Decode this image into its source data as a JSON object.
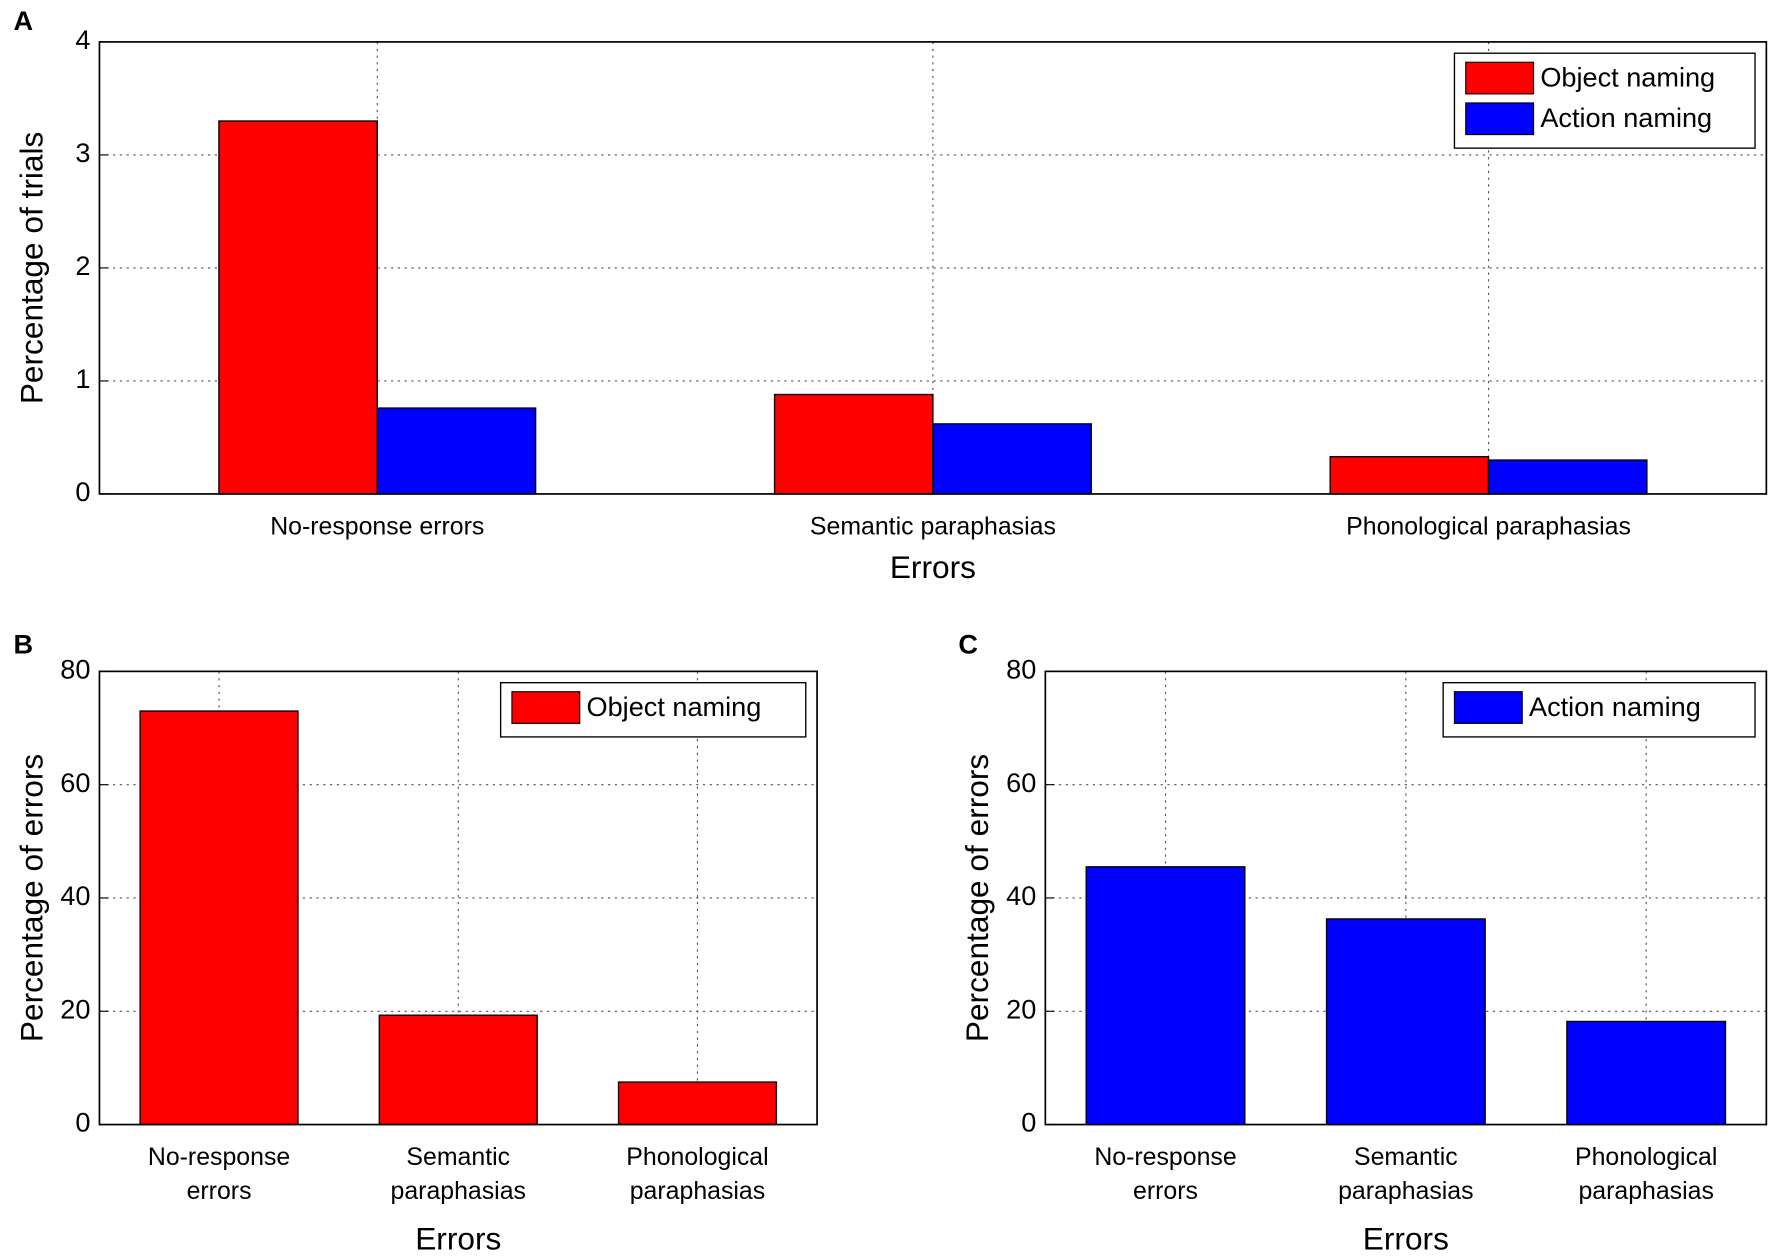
{
  "chart_data": [
    {
      "type": "bar",
      "panel_label": "A",
      "xlabel": "Errors",
      "ylabel": "Percentage of trials",
      "categories": [
        "No-response errors",
        "Semantic paraphasias",
        "Phonological paraphasias"
      ],
      "series": [
        {
          "name": "Object naming",
          "color": "#ff0000",
          "values": [
            3.3,
            0.88,
            0.33
          ]
        },
        {
          "name": "Action naming",
          "color": "#0000ff",
          "values": [
            0.76,
            0.62,
            0.3
          ]
        }
      ],
      "ylim": [
        0,
        4
      ],
      "yticks": [
        0,
        1,
        2,
        3,
        4
      ],
      "grid": true,
      "legend": "upper right"
    },
    {
      "type": "bar",
      "panel_label": "B",
      "xlabel": "Errors",
      "ylabel": "Percentage of errors",
      "categories": [
        "No-response errors",
        "Semantic paraphasias",
        "Phonological paraphasias"
      ],
      "series": [
        {
          "name": "Object naming",
          "color": "#ff0000",
          "values": [
            73,
            19.3,
            7.5
          ]
        }
      ],
      "ylim": [
        0,
        80
      ],
      "yticks": [
        0,
        20,
        40,
        60,
        80
      ],
      "grid": true,
      "legend": "upper right"
    },
    {
      "type": "bar",
      "panel_label": "C",
      "xlabel": "Errors",
      "ylabel": "Percentage of errors",
      "categories": [
        "No-response errors",
        "Semantic paraphasias",
        "Phonological paraphasias"
      ],
      "series": [
        {
          "name": "Action naming",
          "color": "#0000ff",
          "values": [
            45.5,
            36.3,
            18.2
          ]
        }
      ],
      "ylim": [
        0,
        80
      ],
      "yticks": [
        0,
        20,
        40,
        60,
        80
      ],
      "grid": true,
      "legend": "upper right"
    }
  ]
}
